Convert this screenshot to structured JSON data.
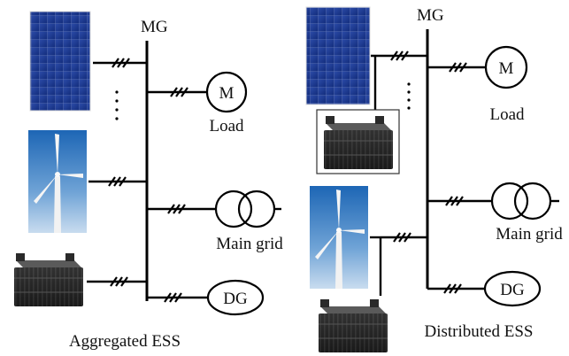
{
  "left": {
    "bus_label": "MG",
    "motor_symbol": "M",
    "load_label": "Load",
    "grid_label": "Main grid",
    "dg_symbol": "DG",
    "caption": "Aggregated ESS"
  },
  "right": {
    "bus_label": "MG",
    "motor_symbol": "M",
    "load_label": "Load",
    "grid_label": "Main grid",
    "dg_symbol": "DG",
    "caption": "Distributed ESS"
  }
}
